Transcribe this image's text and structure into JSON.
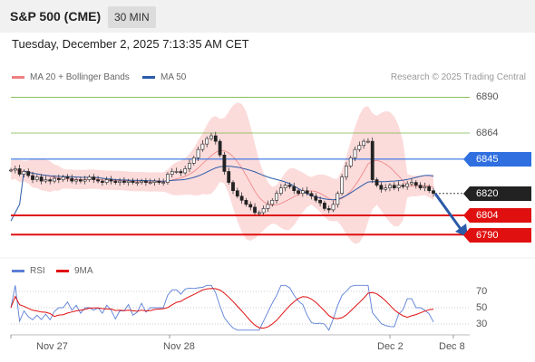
{
  "header": {
    "title": "S&P 500 (CME)",
    "timeframe": "30 MIN"
  },
  "datetime": "Tuesday, December 2, 2025 7:13:35 AM CET",
  "legend": {
    "bollinger": {
      "label": "MA 20 + Bollinger Bands",
      "color": "#f08080"
    },
    "ma50": {
      "label": "MA 50",
      "color": "#2b5aa8"
    }
  },
  "copyright": "Research © 2025 Trading Central",
  "levels": [
    {
      "value": "6890",
      "color": "#7ab648",
      "kind": "resistance"
    },
    {
      "value": "6864",
      "color": "#7ab648",
      "kind": "resistance"
    },
    {
      "value": "6845",
      "color": "#2f6fe0",
      "kind": "pivot"
    },
    {
      "value": "6820",
      "color": "#222222",
      "kind": "last"
    },
    {
      "value": "6804",
      "color": "#e01010",
      "kind": "support"
    },
    {
      "value": "6790",
      "color": "#e01010",
      "kind": "support"
    }
  ],
  "rsi_legend": {
    "rsi": {
      "label": "RSI",
      "color": "#5b7fd6"
    },
    "ma9": {
      "label": "9MA",
      "color": "#e01010"
    }
  },
  "rsi_levels": [
    "70",
    "50",
    "30"
  ],
  "x_axis": [
    "Nov 27",
    "Nov 28",
    "Dec 2",
    "Dec 8"
  ],
  "chart_data": {
    "type": "candlestick",
    "title": "S&P 500 (CME)",
    "timeframe": "30 MIN",
    "y_levels": [
      6890,
      6864,
      6845,
      6820,
      6804,
      6790
    ],
    "last_price": 6820,
    "x_ticks": [
      "Nov 27",
      "Nov 28",
      "Dec 2",
      "Dec 8"
    ],
    "series": [
      {
        "name": "MA 20 + Bollinger Bands"
      },
      {
        "name": "MA 50"
      }
    ],
    "closes": [
      6837,
      6838,
      6834,
      6836,
      6833,
      6830,
      6832,
      6829,
      6830,
      6829,
      6831,
      6830,
      6832,
      6831,
      6829,
      6830,
      6829,
      6830,
      6832,
      6830,
      6829,
      6828,
      6830,
      6829,
      6828,
      6829,
      6828,
      6829,
      6828,
      6828,
      6829,
      6828,
      6828,
      6829,
      6828,
      6828,
      6834,
      6836,
      6836,
      6835,
      6838,
      6842,
      6846,
      6852,
      6856,
      6860,
      6862,
      6858,
      6848,
      6836,
      6828,
      6822,
      6818,
      6815,
      6812,
      6810,
      6806,
      6806,
      6809,
      6812,
      6815,
      6820,
      6824,
      6826,
      6825,
      6822,
      6820,
      6822,
      6820,
      6818,
      6815,
      6813,
      6809,
      6808,
      6812,
      6820,
      6832,
      6840,
      6846,
      6852,
      6855,
      6858,
      6858,
      6830,
      6826,
      6823,
      6824,
      6826,
      6824,
      6826,
      6825,
      6827,
      6828,
      6826,
      6824,
      6825,
      6822,
      6820
    ],
    "rsi_reference_levels": [
      70,
      50,
      30
    ]
  }
}
